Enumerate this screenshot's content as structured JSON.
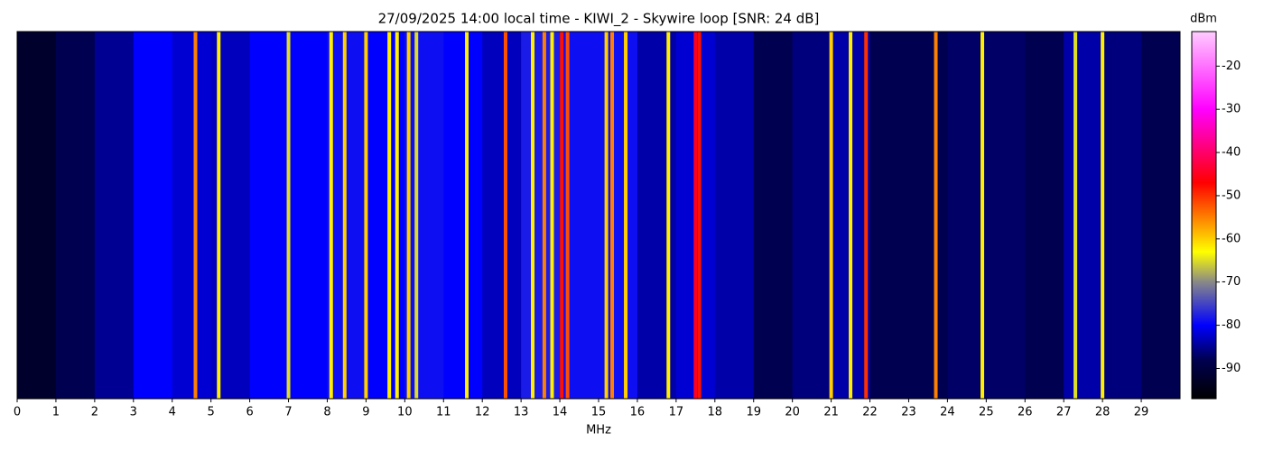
{
  "chart_data": {
    "type": "waterfall",
    "title": "27/09/2025 14:00 local time - KIWI_2 - Skywire loop [SNR: 24 dB]",
    "x_label": "MHz",
    "colorbar_label": "dBm",
    "xlim": [
      0,
      30
    ],
    "xticks": [
      0,
      1,
      2,
      3,
      4,
      5,
      6,
      7,
      8,
      9,
      10,
      11,
      12,
      13,
      14,
      15,
      16,
      17,
      18,
      19,
      20,
      21,
      22,
      23,
      24,
      25,
      26,
      27,
      28,
      29
    ],
    "clim": [
      -97,
      -12
    ],
    "cticks": [
      -90,
      -80,
      -70,
      -60,
      -50,
      -40,
      -30,
      -20
    ],
    "colormap": [
      {
        "value": -97,
        "color": "#000000"
      },
      {
        "value": -88,
        "color": "#000050"
      },
      {
        "value": -80,
        "color": "#0000ff"
      },
      {
        "value": -70,
        "color": "#888888"
      },
      {
        "value": -63,
        "color": "#ffff00"
      },
      {
        "value": -47,
        "color": "#ff0000"
      },
      {
        "value": -30,
        "color": "#ff00ff"
      },
      {
        "value": -12,
        "color": "#ffccff"
      }
    ],
    "background": [
      -92,
      -88,
      -85,
      -80,
      -82,
      -83,
      -80,
      -80,
      -79,
      -80,
      -79,
      -80,
      -83,
      -78,
      -79,
      -79,
      -84,
      -82,
      -84,
      -88,
      -86,
      -84,
      -88,
      -88,
      -87,
      -87,
      -88,
      -84,
      -86,
      -88
    ],
    "lines": [
      {
        "x": 4.6,
        "value": -55
      },
      {
        "x": 5.2,
        "value": -62
      },
      {
        "x": 7.0,
        "value": -65
      },
      {
        "x": 8.1,
        "value": -62
      },
      {
        "x": 8.45,
        "value": -60
      },
      {
        "x": 9.0,
        "value": -60
      },
      {
        "x": 9.6,
        "value": -62
      },
      {
        "x": 9.8,
        "value": -62
      },
      {
        "x": 10.1,
        "value": -60
      },
      {
        "x": 10.3,
        "value": -65
      },
      {
        "x": 11.6,
        "value": -62
      },
      {
        "x": 12.6,
        "value": -52
      },
      {
        "x": 13.3,
        "value": -62
      },
      {
        "x": 13.6,
        "value": -55
      },
      {
        "x": 13.8,
        "value": -62
      },
      {
        "x": 14.05,
        "value": -48
      },
      {
        "x": 14.2,
        "value": -52
      },
      {
        "x": 15.2,
        "value": -60
      },
      {
        "x": 15.35,
        "value": -55
      },
      {
        "x": 15.7,
        "value": -60
      },
      {
        "x": 16.8,
        "value": -62
      },
      {
        "x": 17.5,
        "value": -45
      },
      {
        "x": 17.6,
        "value": -48
      },
      {
        "x": 21.0,
        "value": -60
      },
      {
        "x": 21.5,
        "value": -62
      },
      {
        "x": 21.9,
        "value": -50
      },
      {
        "x": 23.7,
        "value": -55
      },
      {
        "x": 24.9,
        "value": -62
      },
      {
        "x": 27.3,
        "value": -65
      },
      {
        "x": 28.0,
        "value": -62
      }
    ]
  }
}
